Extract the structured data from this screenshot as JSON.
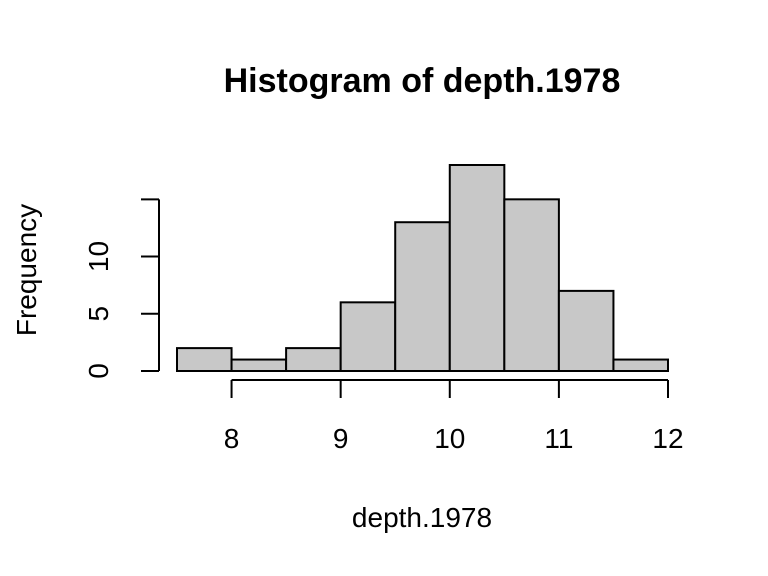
{
  "chart_data": {
    "type": "bar",
    "title": "Histogram of depth.1978",
    "xlabel": "depth.1978",
    "ylabel": "Frequency",
    "bins": [
      {
        "start": 7.5,
        "end": 8.0,
        "count": 2
      },
      {
        "start": 8.0,
        "end": 8.5,
        "count": 1
      },
      {
        "start": 8.5,
        "end": 9.0,
        "count": 2
      },
      {
        "start": 9.0,
        "end": 9.5,
        "count": 6
      },
      {
        "start": 9.5,
        "end": 10.0,
        "count": 13
      },
      {
        "start": 10.0,
        "end": 10.5,
        "count": 18
      },
      {
        "start": 10.5,
        "end": 11.0,
        "count": 15
      },
      {
        "start": 11.0,
        "end": 11.5,
        "count": 7
      },
      {
        "start": 11.5,
        "end": 12.0,
        "count": 1
      }
    ],
    "xticks": [
      8,
      9,
      10,
      11,
      12
    ],
    "xtick_labels": [
      "8",
      "9",
      "10",
      "11",
      "12"
    ],
    "yticks": [
      0,
      5,
      10,
      15
    ],
    "ytick_labels": [
      "0",
      "5",
      "10",
      ""
    ],
    "xlim": [
      7.5,
      12
    ],
    "ylim": [
      0,
      18
    ],
    "bar_color": "#c8c8c8",
    "grid": false
  }
}
